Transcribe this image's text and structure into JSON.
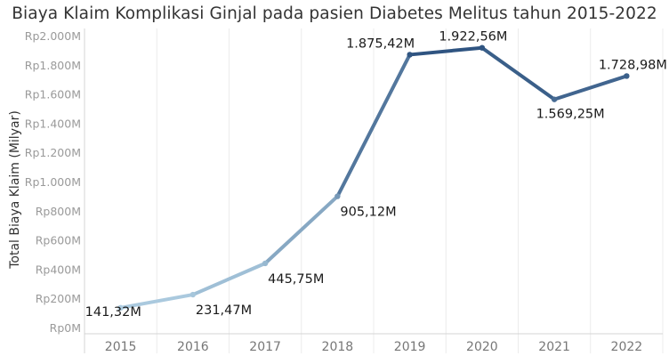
{
  "chart_data": {
    "type": "line",
    "title": "Biaya Klaim Komplikasi Ginjal pada pasien Diabetes Melitus tahun 2015-2022",
    "xlabel": "",
    "ylabel": "Total Biaya Klaim (Milyar)",
    "categories": [
      "2015",
      "2016",
      "2017",
      "2018",
      "2019",
      "2020",
      "2021",
      "2022"
    ],
    "values": [
      141.32,
      231.47,
      445.75,
      905.12,
      1875.42,
      1922.56,
      1569.25,
      1728.98
    ],
    "data_labels": [
      "141,32M",
      "231,47M",
      "445,75M",
      "905,12M",
      "1.875,42M",
      "1.922,56M",
      "1.569,25M",
      "1.728,98M"
    ],
    "data_label_positions": [
      "below",
      "below",
      "below",
      "below",
      "above",
      "above",
      "below",
      "above"
    ],
    "ylim": [
      0,
      2000
    ],
    "yticks": [
      0,
      200,
      400,
      600,
      800,
      1000,
      1200,
      1400,
      1600,
      1800,
      2000
    ],
    "ytick_labels": [
      "Rp0M",
      "Rp200M",
      "Rp400M",
      "Rp600M",
      "Rp800M",
      "Rp1.000M",
      "Rp1.200M",
      "Rp1.400M",
      "Rp1.600M",
      "Rp1.800M",
      "Rp2.000M"
    ],
    "grid": "vertical",
    "colors": {
      "low": "#b7d6e8",
      "high": "#2f5481"
    }
  }
}
